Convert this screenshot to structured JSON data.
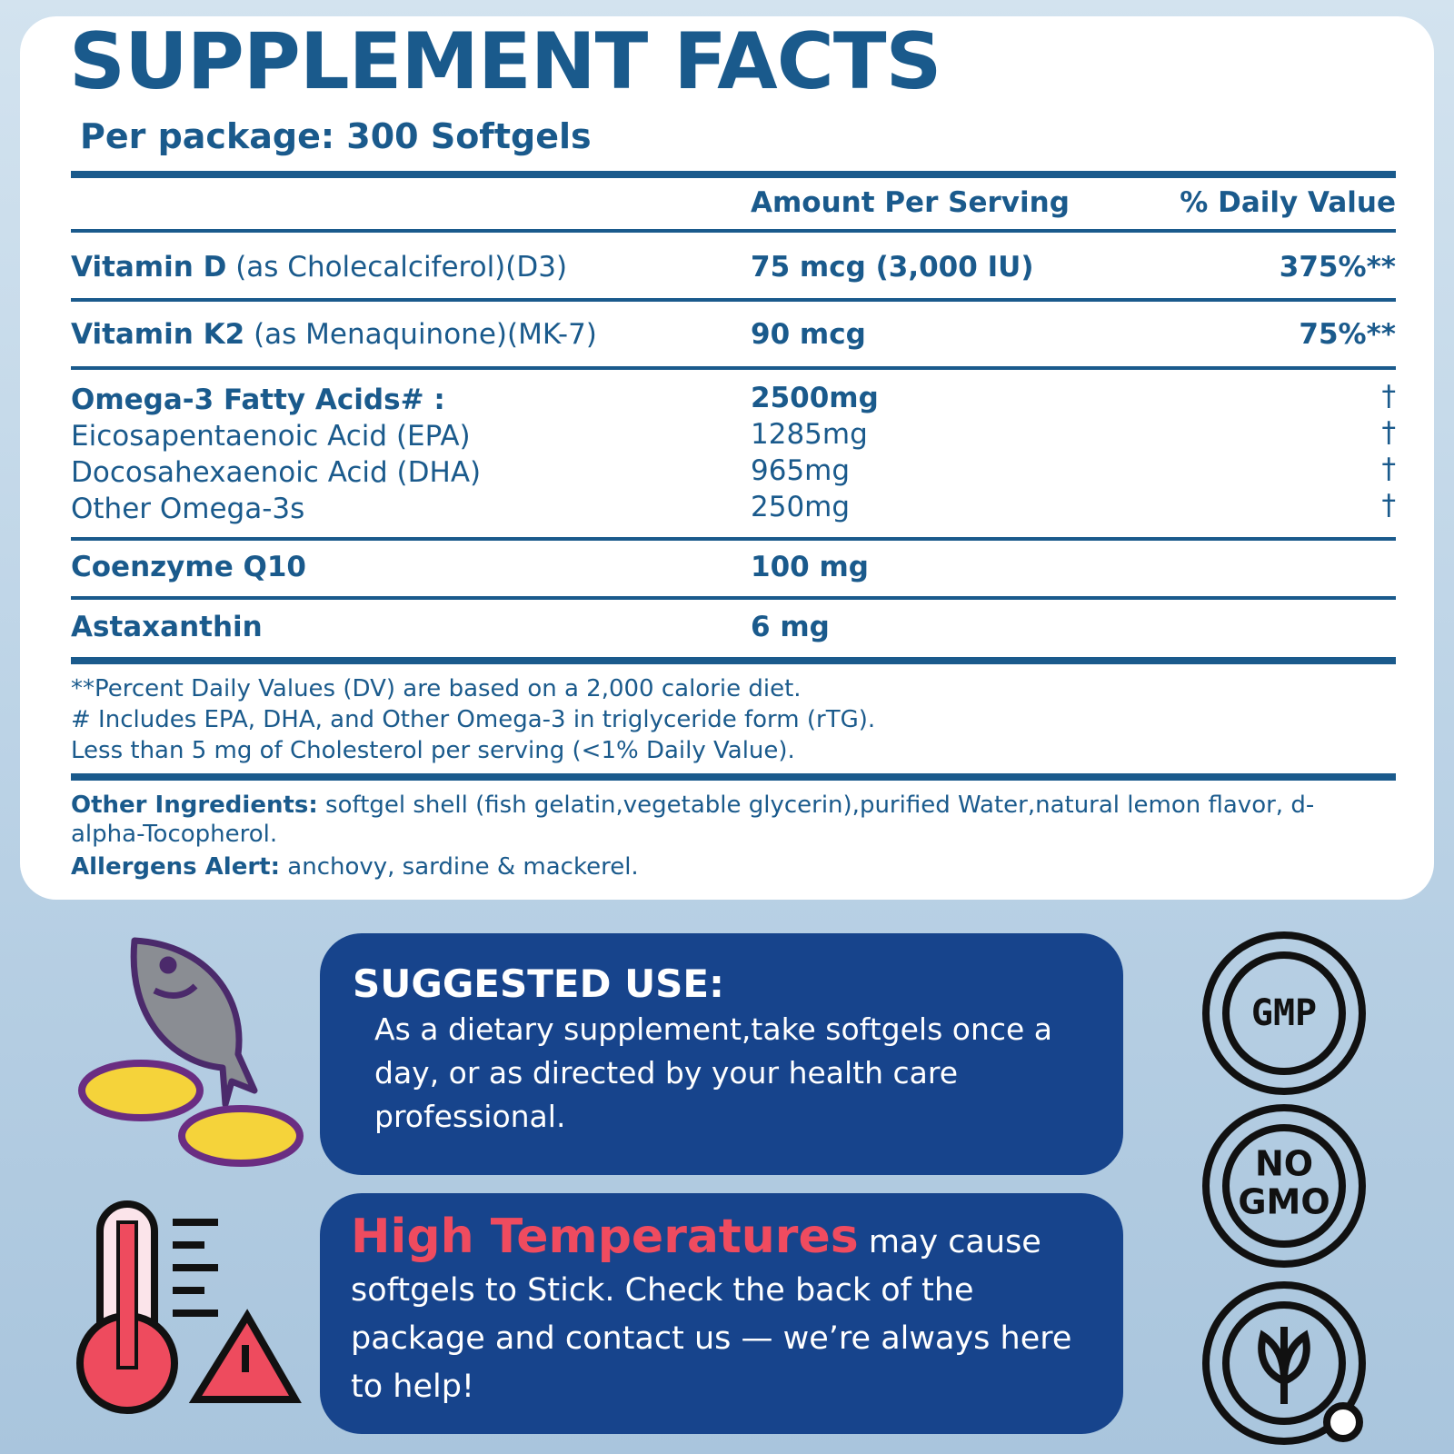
{
  "header": {
    "title": "SUPPLEMENT FACTS",
    "subtitle": "Per package: 300 Softgels"
  },
  "table": {
    "columns": [
      "Amount Per Serving",
      "% Daily Value"
    ],
    "rows": [
      {
        "name": "Vitamin D",
        "detail": "(as Cholecalciferol)(D3)",
        "amount": "75 mcg (3,000 IU)",
        "daily_value": "375%**"
      },
      {
        "name": "Vitamin K2",
        "detail": "(as Menaquinone)(MK-7)",
        "amount": "90 mcg",
        "daily_value": "75%**"
      },
      {
        "name": "Omega-3 Fatty Acids# :",
        "amount": "2500mg",
        "daily_value": "†"
      },
      {
        "name": "Eicosapentaenoic Acid (EPA)",
        "amount": "1285mg",
        "daily_value": "†"
      },
      {
        "name": "Docosahexaenoic Acid (DHA)",
        "amount": "965mg",
        "daily_value": "†"
      },
      {
        "name": "Other Omega-3s",
        "amount": "250mg",
        "daily_value": "†"
      },
      {
        "name": "Coenzyme Q10",
        "amount": "100 mg"
      },
      {
        "name": "Astaxanthin",
        "amount": "6 mg"
      }
    ]
  },
  "footnotes": [
    "**Percent Daily Values (DV) are based on a 2,000 calorie diet.",
    "# Includes EPA, DHA, and Other Omega-3 in triglyceride form (rTG).",
    "Less than 5 mg of Cholesterol per serving (<1% Daily Value)."
  ],
  "other_ingredients": {
    "label": "Other Ingredients:",
    "text": "softgel shell (fish gelatin,vegetable glycerin),purified Water,natural lemon flavor, d-alpha-Tocopherol."
  },
  "allergens": {
    "label": "Allergens Alert:",
    "text": "anchovy, sardine & mackerel."
  },
  "suggested_use": {
    "title": "SUGGESTED USE:",
    "text": "As a dietary supplement,take softgels once a day, or as directed by your health care professional."
  },
  "warning": {
    "highlight": "High Temperatures",
    "text": "may cause softgels to Stick. Check the back of the package and contact us — we’re always here to help!"
  },
  "badges": {
    "gmp": "GMP",
    "no_gmo": [
      "NO",
      "GMO"
    ]
  }
}
